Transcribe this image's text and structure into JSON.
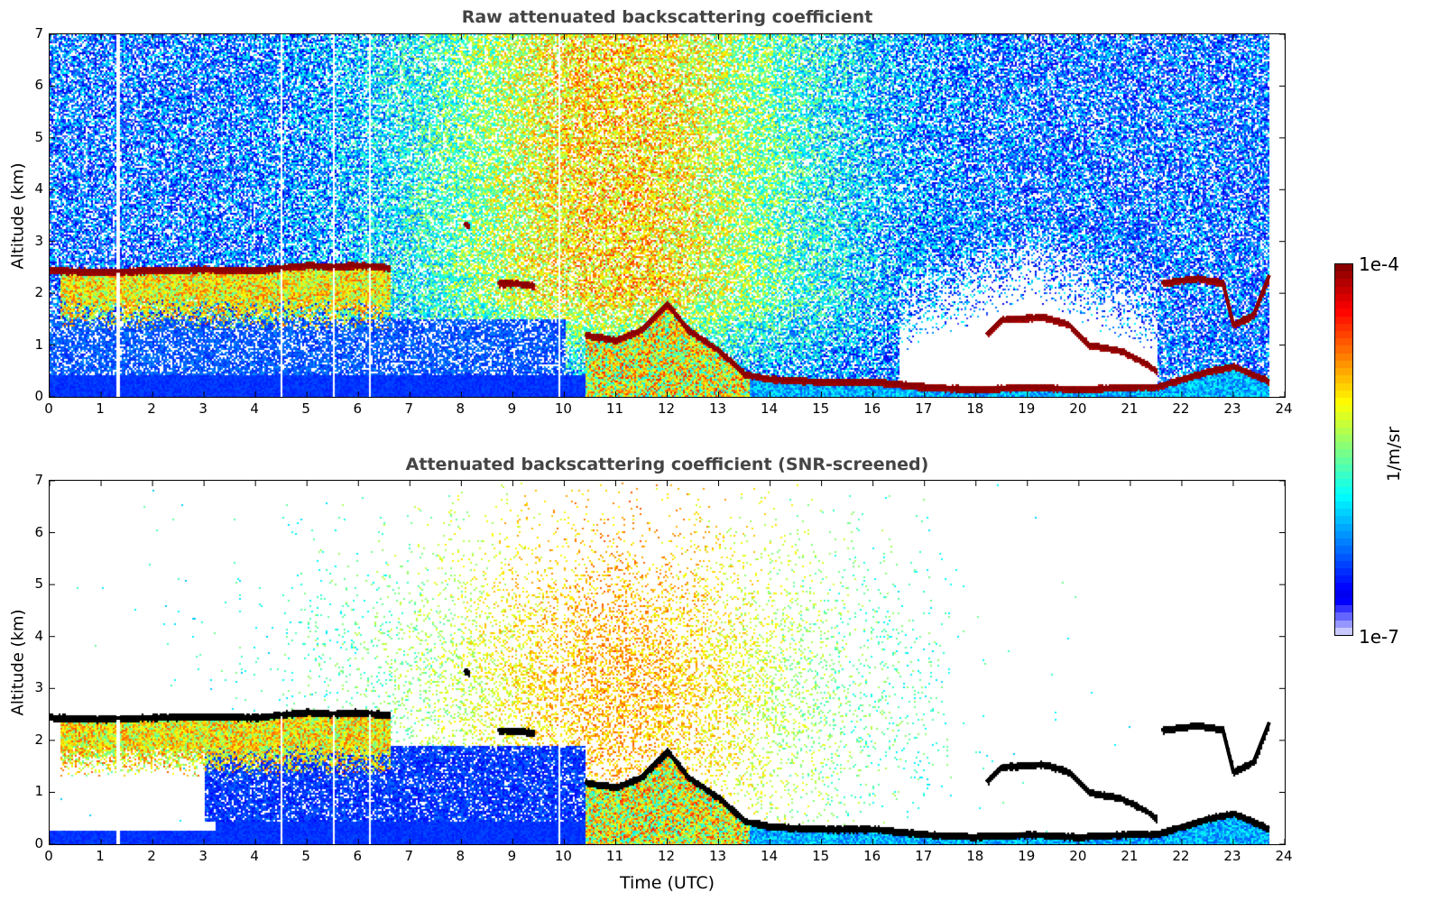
{
  "chart_data": [
    {
      "type": "heatmap",
      "title": "Raw attenuated backscattering coefficient",
      "xlabel": "",
      "ylabel": "Altitude (km)",
      "xlim": [
        0,
        24
      ],
      "ylim": [
        0,
        7
      ],
      "xticks": [
        "0",
        "1",
        "2",
        "3",
        "4",
        "5",
        "6",
        "7",
        "8",
        "9",
        "10",
        "11",
        "12",
        "13",
        "14",
        "15",
        "16",
        "17",
        "18",
        "19",
        "20",
        "21",
        "22",
        "23",
        "24"
      ],
      "yticks": [
        "0",
        "1",
        "2",
        "3",
        "4",
        "5",
        "6",
        "7"
      ],
      "data_end_time": 23.7,
      "cloud_layers": [
        {
          "name": "low-cloud-morning",
          "points": [
            [
              0,
              2.45
            ],
            [
              1,
              2.42
            ],
            [
              2,
              2.45
            ],
            [
              3,
              2.47
            ],
            [
              4,
              2.45
            ],
            [
              4.5,
              2.5
            ],
            [
              5,
              2.55
            ],
            [
              5.5,
              2.52
            ],
            [
              6,
              2.55
            ],
            [
              6.6,
              2.5
            ]
          ]
        },
        {
          "name": "cloud-8h",
          "points": [
            [
              8.05,
              3.35
            ],
            [
              8.15,
              3.3
            ]
          ]
        },
        {
          "name": "cloud-9h",
          "points": [
            [
              8.7,
              2.2
            ],
            [
              9.1,
              2.2
            ],
            [
              9.4,
              2.15
            ]
          ]
        },
        {
          "name": "descending-layer",
          "points": [
            [
              10.4,
              1.2
            ],
            [
              11,
              1.1
            ],
            [
              11.5,
              1.3
            ],
            [
              12,
              1.8
            ],
            [
              12.4,
              1.3
            ],
            [
              13,
              0.9
            ],
            [
              13.5,
              0.45
            ],
            [
              14,
              0.35
            ],
            [
              15,
              0.3
            ],
            [
              16,
              0.3
            ],
            [
              17,
              0.2
            ],
            [
              18,
              0.15
            ],
            [
              19,
              0.2
            ],
            [
              20,
              0.15
            ],
            [
              21,
              0.2
            ],
            [
              21.5,
              0.2
            ],
            [
              22,
              0.35
            ],
            [
              22.5,
              0.5
            ],
            [
              23,
              0.6
            ],
            [
              23.7,
              0.3
            ]
          ]
        },
        {
          "name": "elevated-layer-evening",
          "points": [
            [
              18.2,
              1.2
            ],
            [
              18.5,
              1.5
            ],
            [
              19.3,
              1.55
            ],
            [
              19.8,
              1.4
            ],
            [
              20.2,
              1.0
            ],
            [
              20.8,
              0.9
            ],
            [
              21.3,
              0.65
            ],
            [
              21.5,
              0.5
            ]
          ]
        },
        {
          "name": "elevated-layer-late",
          "points": [
            [
              21.6,
              2.2
            ],
            [
              22.3,
              2.3
            ],
            [
              22.8,
              2.2
            ],
            [
              23.0,
              1.4
            ],
            [
              23.4,
              1.6
            ],
            [
              23.7,
              2.35
            ]
          ]
        }
      ]
    },
    {
      "type": "heatmap",
      "title": "Attenuated backscattering coefficient (SNR-screened)",
      "xlabel": "Time (UTC)",
      "ylabel": "Altitude (km)",
      "xlim": [
        0,
        24
      ],
      "ylim": [
        0,
        7
      ],
      "xticks": [
        "0",
        "1",
        "2",
        "3",
        "4",
        "5",
        "6",
        "7",
        "8",
        "9",
        "10",
        "11",
        "12",
        "13",
        "14",
        "15",
        "16",
        "17",
        "18",
        "19",
        "20",
        "21",
        "22",
        "23",
        "24"
      ],
      "yticks": [
        "0",
        "1",
        "2",
        "3",
        "4",
        "5",
        "6",
        "7"
      ],
      "data_end_time": 23.7,
      "cloud_layers": "same as raw panel, shown as black (saturated) layer"
    }
  ],
  "colorbar": {
    "label": "1/m/sr",
    "max_label": "1e-4",
    "min_label": "1e-7",
    "range": [
      1e-07,
      0.0001
    ],
    "scale": "log",
    "colormap": "jet"
  }
}
